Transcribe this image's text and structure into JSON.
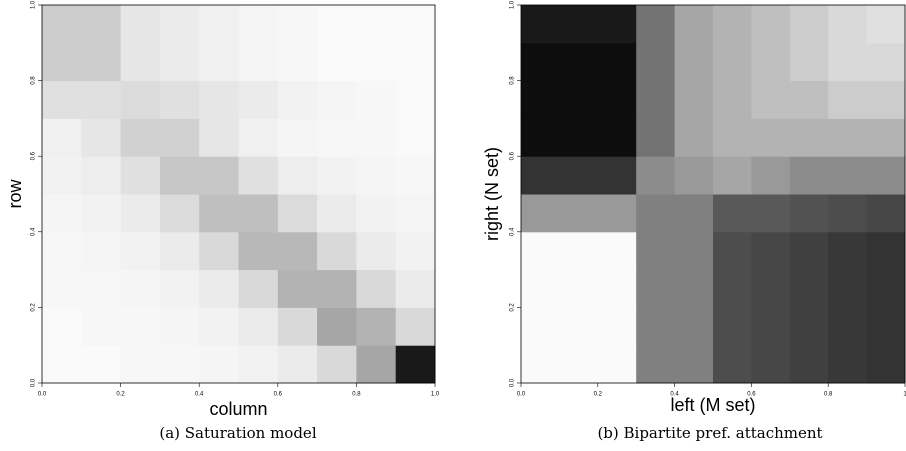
{
  "chart_data": [
    {
      "type": "heatmap",
      "caption": "(a) Saturation model",
      "xlabel": "column",
      "ylabel": "row",
      "xlim": [
        0,
        1
      ],
      "ylim": [
        0,
        1
      ],
      "xticks": [
        {
          "value": 0,
          "label": "0.0"
        },
        0.2,
        0.4,
        0.6,
        0.8,
        {
          "value": 1,
          "label": "1.0"
        }
      ],
      "yticks": [
        {
          "value": 0,
          "label": "0.0"
        },
        0.2,
        0.4,
        0.6,
        0.8,
        {
          "value": 1,
          "label": "1.0"
        }
      ],
      "z": [
        [
          0.02,
          0.02,
          0.03,
          0.03,
          0.04,
          0.05,
          0.08,
          0.15,
          0.35,
          0.9
        ],
        [
          0.02,
          0.03,
          0.03,
          0.04,
          0.05,
          0.08,
          0.15,
          0.35,
          0.3,
          0.15
        ],
        [
          0.03,
          0.03,
          0.04,
          0.05,
          0.08,
          0.15,
          0.3,
          0.3,
          0.15,
          0.08
        ],
        [
          0.03,
          0.04,
          0.05,
          0.08,
          0.15,
          0.28,
          0.28,
          0.15,
          0.08,
          0.05
        ],
        [
          0.04,
          0.05,
          0.08,
          0.14,
          0.25,
          0.25,
          0.14,
          0.08,
          0.05,
          0.04
        ],
        [
          0.05,
          0.07,
          0.12,
          0.22,
          0.22,
          0.12,
          0.07,
          0.05,
          0.04,
          0.03
        ],
        [
          0.06,
          0.1,
          0.18,
          0.18,
          0.1,
          0.06,
          0.04,
          0.03,
          0.03,
          0.02
        ],
        [
          0.12,
          0.12,
          0.14,
          0.12,
          0.1,
          0.08,
          0.05,
          0.04,
          0.03,
          0.02
        ],
        [
          0.2,
          0.2,
          0.1,
          0.08,
          0.06,
          0.04,
          0.03,
          0.02,
          0.02,
          0.02
        ],
        [
          0.2,
          0.2,
          0.1,
          0.08,
          0.06,
          0.04,
          0.03,
          0.02,
          0.02,
          0.02
        ]
      ]
    },
    {
      "type": "heatmap",
      "caption": "(b) Bipartite pref. attachment",
      "xlabel": "left (M set)",
      "ylabel": "right (N set)",
      "xlim": [
        0,
        1
      ],
      "ylim": [
        0,
        1
      ],
      "xticks": [
        {
          "value": 0,
          "label": "0.0"
        },
        0.2,
        0.4,
        0.6,
        0.8,
        1
      ],
      "yticks": [
        {
          "value": 0,
          "label": "0.0"
        },
        0.2,
        0.4,
        0.6,
        0.8,
        {
          "value": 1,
          "label": "1.0"
        }
      ],
      "z": [
        [
          0.02,
          0.02,
          0.02,
          0.5,
          0.5,
          0.7,
          0.72,
          0.75,
          0.78,
          0.8
        ],
        [
          0.02,
          0.02,
          0.02,
          0.5,
          0.5,
          0.7,
          0.72,
          0.75,
          0.78,
          0.8
        ],
        [
          0.02,
          0.02,
          0.02,
          0.5,
          0.5,
          0.7,
          0.72,
          0.75,
          0.78,
          0.8
        ],
        [
          0.02,
          0.02,
          0.02,
          0.5,
          0.5,
          0.7,
          0.72,
          0.75,
          0.78,
          0.8
        ],
        [
          0.4,
          0.4,
          0.4,
          0.5,
          0.5,
          0.65,
          0.65,
          0.68,
          0.7,
          0.72
        ],
        [
          0.8,
          0.8,
          0.8,
          0.45,
          0.4,
          0.35,
          0.4,
          0.45,
          0.45,
          0.45
        ],
        [
          0.95,
          0.95,
          0.95,
          0.55,
          0.35,
          0.3,
          0.3,
          0.3,
          0.3,
          0.3
        ],
        [
          0.95,
          0.95,
          0.95,
          0.55,
          0.35,
          0.3,
          0.25,
          0.25,
          0.2,
          0.2
        ],
        [
          0.95,
          0.95,
          0.95,
          0.55,
          0.35,
          0.3,
          0.25,
          0.2,
          0.15,
          0.15
        ],
        [
          0.9,
          0.9,
          0.9,
          0.55,
          0.35,
          0.3,
          0.25,
          0.2,
          0.15,
          0.12
        ]
      ]
    }
  ]
}
